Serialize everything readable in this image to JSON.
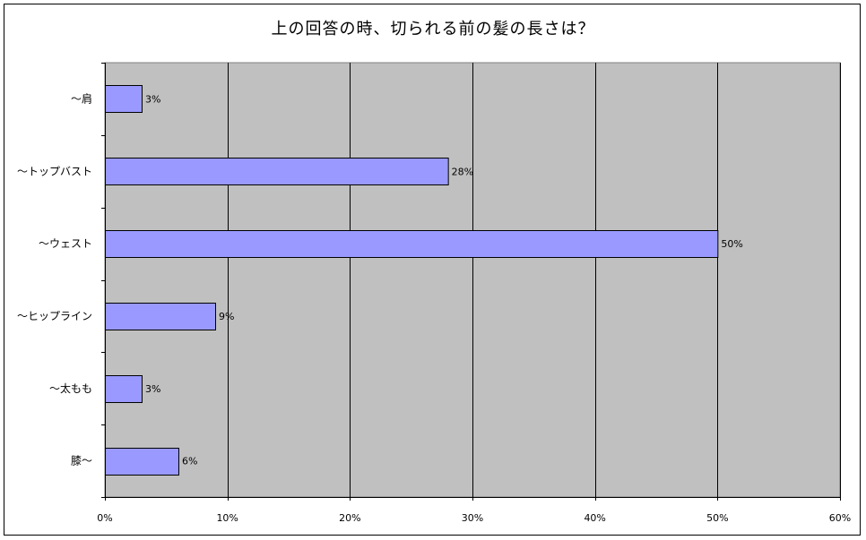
{
  "chart_data": {
    "type": "bar",
    "orientation": "horizontal",
    "title": "上の回答の時、切られる前の髪の長さは？",
    "categories": [
      "～肩",
      "～トップバスト",
      "～ウェスト",
      "～ヒップライン",
      "～太もも",
      "膝～"
    ],
    "values": [
      3,
      28,
      50,
      9,
      3,
      6
    ],
    "data_labels": [
      "3%",
      "28%",
      "50%",
      "9%",
      "3%",
      "6%"
    ],
    "xlim": [
      0,
      60
    ],
    "x_ticks": [
      0,
      10,
      20,
      30,
      40,
      50,
      60
    ],
    "x_tick_labels": [
      "0%",
      "10%",
      "20%",
      "30%",
      "40%",
      "50%",
      "60%"
    ],
    "grid": "vertical major gridlines",
    "legend": "none",
    "colors": {
      "bar_fill": "#9999ff",
      "bar_stroke": "#000000",
      "plot_background": "#c0c0c0",
      "gridline": "#000000"
    }
  }
}
